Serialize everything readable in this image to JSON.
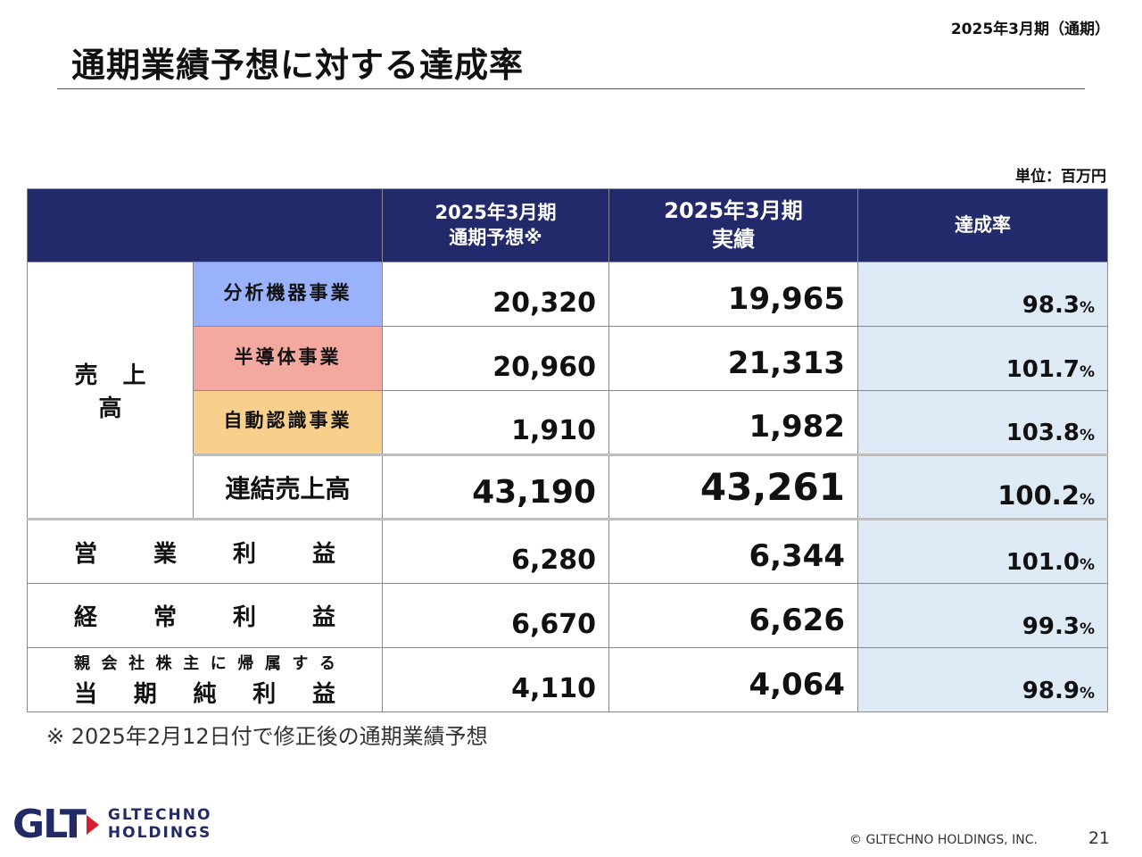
{
  "header": {
    "period_tag": "2025年3月期（通期）",
    "title": "通期業績予想に対する達成率"
  },
  "unit": "単位：百万円",
  "table": {
    "columns": {
      "forecast_line1": "2025年3月期",
      "forecast_line2": "通期予想※",
      "actual_line1": "2025年3月期",
      "actual_line2": "実績",
      "rate": "達成率"
    },
    "sales_label": "売上高",
    "percent_sign": "%",
    "segments": [
      {
        "name": "分析機器事業",
        "forecast": "20,320",
        "actual": "19,965",
        "rate": "98.3"
      },
      {
        "name": "半導体事業",
        "forecast": "20,960",
        "actual": "21,313",
        "rate": "101.7"
      },
      {
        "name": "自動認識事業",
        "forecast": "1,910",
        "actual": "1,982",
        "rate": "103.8"
      }
    ],
    "consolidated": {
      "name": "連結売上高",
      "forecast": "43,190",
      "actual": "43,261",
      "rate": "100.2"
    },
    "operating": {
      "chars": [
        "営",
        "業",
        "利",
        "益"
      ],
      "forecast": "6,280",
      "actual": "6,344",
      "rate": "101.0"
    },
    "ordinary": {
      "chars": [
        "経",
        "常",
        "利",
        "益"
      ],
      "forecast": "6,670",
      "actual": "6,626",
      "rate": "99.3"
    },
    "net": {
      "line1_chars": [
        "親",
        "会",
        "社",
        "株",
        "主",
        "に",
        "帰",
        "属",
        "す",
        "る"
      ],
      "line2_chars": [
        "当",
        "期",
        "純",
        "利",
        "益"
      ],
      "forecast": "4,110",
      "actual": "4,064",
      "rate": "98.9"
    }
  },
  "footnote": "※ 2025年2月12日付で修正後の通期業績予想",
  "footer": {
    "logo_mark": "GLT",
    "logo_line1": "GLTECHNO",
    "logo_line2": "HOLDINGS",
    "copyright": "© GLTECHNO HOLDINGS, INC.",
    "page_number": "21"
  },
  "colors": {
    "header_bg": "#232a6b",
    "rate_bg": "#deeaf6",
    "analysis": "#9ab2fb",
    "semiconductor": "#f4a9a0",
    "auto_id": "#f9cf8c",
    "logo_red": "#d4202c"
  }
}
